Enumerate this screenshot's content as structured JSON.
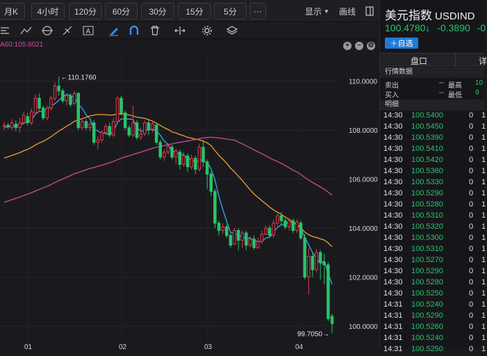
{
  "period_tabs": [
    "月K",
    "4小时",
    "120分",
    "60分",
    "30分",
    "15分",
    "5分",
    "···"
  ],
  "toolbar_right": {
    "display_label": "显示",
    "draw_label": "画线"
  },
  "ma_info": "A60:105.6021",
  "chart_data": {
    "type": "candlestick",
    "y_axis_labels": [
      "110.0000",
      "108.0000",
      "106.0000",
      "104.0000",
      "102.0000",
      "100.0000"
    ],
    "ylim": [
      99.4,
      110.9
    ],
    "annotations": {
      "high": "←110.1760",
      "low": "99.7050→"
    },
    "x_tick_labels": [
      "01",
      "02",
      "03",
      "04"
    ],
    "colors": {
      "up": "#e5384f",
      "down": "#29c46a",
      "ma_fast": "#3ba6f0",
      "ma_mid": "#f0a030",
      "ma_slow": "#d04a9a"
    },
    "candles": [
      {
        "o": 108.15,
        "c": 108.2,
        "h": 108.35,
        "l": 108.0
      },
      {
        "o": 108.2,
        "c": 108.15,
        "h": 108.3,
        "l": 108.05
      },
      {
        "o": 108.1,
        "c": 108.3,
        "h": 108.45,
        "l": 108.0
      },
      {
        "o": 108.25,
        "c": 108.1,
        "h": 108.4,
        "l": 107.95
      },
      {
        "o": 108.1,
        "c": 108.3,
        "h": 108.5,
        "l": 107.9
      },
      {
        "o": 108.3,
        "c": 108.6,
        "h": 108.75,
        "l": 108.2
      },
      {
        "o": 108.55,
        "c": 108.3,
        "h": 108.7,
        "l": 108.2
      },
      {
        "o": 108.3,
        "c": 108.75,
        "h": 108.9,
        "l": 108.2
      },
      {
        "o": 108.7,
        "c": 109.3,
        "h": 109.45,
        "l": 108.6
      },
      {
        "o": 109.3,
        "c": 108.9,
        "h": 109.5,
        "l": 108.8
      },
      {
        "o": 108.9,
        "c": 108.5,
        "h": 109.0,
        "l": 108.4
      },
      {
        "o": 108.5,
        "c": 108.9,
        "h": 109.0,
        "l": 108.4
      },
      {
        "o": 108.9,
        "c": 109.3,
        "h": 109.4,
        "l": 108.8
      },
      {
        "o": 109.3,
        "c": 109.8,
        "h": 109.95,
        "l": 109.2
      },
      {
        "o": 109.8,
        "c": 109.6,
        "h": 110.176,
        "l": 109.4
      },
      {
        "o": 109.6,
        "c": 109.2,
        "h": 109.7,
        "l": 109.1
      },
      {
        "o": 109.2,
        "c": 109.4,
        "h": 109.5,
        "l": 109.0
      },
      {
        "o": 109.4,
        "c": 109.05,
        "h": 109.5,
        "l": 108.95
      },
      {
        "o": 109.1,
        "c": 109.5,
        "h": 109.6,
        "l": 109.0
      },
      {
        "o": 109.5,
        "c": 108.1,
        "h": 109.55,
        "l": 108.0
      },
      {
        "o": 108.1,
        "c": 108.35,
        "h": 108.5,
        "l": 108.0
      },
      {
        "o": 108.35,
        "c": 108.1,
        "h": 108.45,
        "l": 108.0
      },
      {
        "o": 108.1,
        "c": 108.25,
        "h": 108.35,
        "l": 107.95
      },
      {
        "o": 108.3,
        "c": 107.5,
        "h": 108.4,
        "l": 107.4
      },
      {
        "o": 107.5,
        "c": 107.6,
        "h": 107.75,
        "l": 107.2
      },
      {
        "o": 107.6,
        "c": 107.9,
        "h": 108.0,
        "l": 107.5
      },
      {
        "o": 107.9,
        "c": 108.15,
        "h": 108.25,
        "l": 107.8
      },
      {
        "o": 108.15,
        "c": 107.8,
        "h": 108.3,
        "l": 107.7
      },
      {
        "o": 107.8,
        "c": 108.35,
        "h": 108.5,
        "l": 107.7
      },
      {
        "o": 108.35,
        "c": 109.3,
        "h": 109.4,
        "l": 108.25
      },
      {
        "o": 109.3,
        "c": 108.7,
        "h": 109.4,
        "l": 108.6
      },
      {
        "o": 108.7,
        "c": 108.1,
        "h": 108.8,
        "l": 108.0
      },
      {
        "o": 108.1,
        "c": 107.8,
        "h": 108.2,
        "l": 107.7
      },
      {
        "o": 107.8,
        "c": 108.3,
        "h": 109.0,
        "l": 107.7
      },
      {
        "o": 108.3,
        "c": 107.7,
        "h": 108.4,
        "l": 107.6
      },
      {
        "o": 107.7,
        "c": 107.85,
        "h": 108.1,
        "l": 107.6
      },
      {
        "o": 107.85,
        "c": 108.3,
        "h": 108.4,
        "l": 107.75
      },
      {
        "o": 108.3,
        "c": 108.0,
        "h": 108.45,
        "l": 107.8
      },
      {
        "o": 108.05,
        "c": 108.25,
        "h": 108.4,
        "l": 107.9
      },
      {
        "o": 108.2,
        "c": 107.5,
        "h": 108.3,
        "l": 107.4
      },
      {
        "o": 107.5,
        "c": 106.9,
        "h": 107.6,
        "l": 106.8
      },
      {
        "o": 106.9,
        "c": 107.1,
        "h": 107.2,
        "l": 106.75
      },
      {
        "o": 107.1,
        "c": 107.35,
        "h": 107.45,
        "l": 107.0
      },
      {
        "o": 107.3,
        "c": 106.9,
        "h": 107.4,
        "l": 106.8
      },
      {
        "o": 106.9,
        "c": 107.15,
        "h": 107.25,
        "l": 106.6
      },
      {
        "o": 107.1,
        "c": 106.6,
        "h": 107.2,
        "l": 106.4
      },
      {
        "o": 106.6,
        "c": 106.95,
        "h": 107.1,
        "l": 106.5
      },
      {
        "o": 106.95,
        "c": 106.5,
        "h": 107.05,
        "l": 106.3
      },
      {
        "o": 106.5,
        "c": 106.85,
        "h": 107.0,
        "l": 106.4
      },
      {
        "o": 106.85,
        "c": 106.4,
        "h": 106.95,
        "l": 106.2
      },
      {
        "o": 106.4,
        "c": 107.3,
        "h": 107.45,
        "l": 106.3
      },
      {
        "o": 107.3,
        "c": 106.7,
        "h": 107.6,
        "l": 106.5
      },
      {
        "o": 106.7,
        "c": 106.2,
        "h": 106.8,
        "l": 105.6
      },
      {
        "o": 106.2,
        "c": 105.5,
        "h": 106.3,
        "l": 105.3
      },
      {
        "o": 105.5,
        "c": 104.2,
        "h": 105.6,
        "l": 104.0
      },
      {
        "o": 104.2,
        "c": 103.9,
        "h": 104.3,
        "l": 103.7
      },
      {
        "o": 103.9,
        "c": 104.05,
        "h": 104.2,
        "l": 103.75
      },
      {
        "o": 104.05,
        "c": 103.7,
        "h": 104.15,
        "l": 103.6
      },
      {
        "o": 103.7,
        "c": 103.3,
        "h": 103.8,
        "l": 103.2
      },
      {
        "o": 103.35,
        "c": 103.9,
        "h": 104.0,
        "l": 103.3
      },
      {
        "o": 103.9,
        "c": 103.5,
        "h": 104.0,
        "l": 103.1
      },
      {
        "o": 103.5,
        "c": 103.8,
        "h": 103.9,
        "l": 103.2
      },
      {
        "o": 103.8,
        "c": 103.3,
        "h": 103.9,
        "l": 103.1
      },
      {
        "o": 103.3,
        "c": 103.55,
        "h": 103.65,
        "l": 103.2
      },
      {
        "o": 103.55,
        "c": 103.2,
        "h": 103.7,
        "l": 103.1
      },
      {
        "o": 103.2,
        "c": 103.45,
        "h": 103.6,
        "l": 103.15
      },
      {
        "o": 103.45,
        "c": 103.75,
        "h": 103.9,
        "l": 103.35
      },
      {
        "o": 103.75,
        "c": 104.0,
        "h": 104.1,
        "l": 103.7
      },
      {
        "o": 104.0,
        "c": 103.7,
        "h": 104.1,
        "l": 103.6
      },
      {
        "o": 103.7,
        "c": 104.2,
        "h": 104.35,
        "l": 103.6
      },
      {
        "o": 104.2,
        "c": 104.5,
        "h": 104.65,
        "l": 104.1
      },
      {
        "o": 104.5,
        "c": 104.3,
        "h": 104.65,
        "l": 104.1
      },
      {
        "o": 104.3,
        "c": 104.05,
        "h": 104.4,
        "l": 103.95
      },
      {
        "o": 104.05,
        "c": 104.3,
        "h": 104.4,
        "l": 103.9
      },
      {
        "o": 104.3,
        "c": 103.9,
        "h": 104.4,
        "l": 103.8
      },
      {
        "o": 103.9,
        "c": 104.25,
        "h": 104.35,
        "l": 103.8
      },
      {
        "o": 104.2,
        "c": 103.6,
        "h": 104.3,
        "l": 103.5
      },
      {
        "o": 103.6,
        "c": 102.0,
        "h": 103.75,
        "l": 101.9
      },
      {
        "o": 102.0,
        "c": 102.85,
        "h": 103.2,
        "l": 101.3
      },
      {
        "o": 102.85,
        "c": 102.3,
        "h": 103.0,
        "l": 102.0
      },
      {
        "o": 102.3,
        "c": 103.0,
        "h": 103.15,
        "l": 102.2
      },
      {
        "o": 103.0,
        "c": 102.6,
        "h": 103.1,
        "l": 101.9
      },
      {
        "o": 102.6,
        "c": 102.5,
        "h": 102.95,
        "l": 101.7
      },
      {
        "o": 102.5,
        "c": 100.3,
        "h": 102.6,
        "l": 100.2
      },
      {
        "o": 100.4,
        "c": 100.1,
        "h": 100.5,
        "l": 99.705
      }
    ]
  },
  "side_panel": {
    "title": "美元指数",
    "code": "USDIND",
    "price": "100.4780↓",
    "change": "-0.3890",
    "pct": "-0",
    "add_button": "＋自选",
    "tabs": [
      "盘口",
      "详"
    ],
    "market_data_title": "行情数据",
    "sell_label": "卖出",
    "sell_value": "--",
    "high_label": "最高",
    "high_value": "10",
    "buy_label": "买入",
    "buy_value": "--",
    "low_label": "最低",
    "low_value": "9",
    "detail_title": "明细",
    "ticks": [
      {
        "time": "14:30",
        "price": "100.5400",
        "vol": "0",
        "v2": "1"
      },
      {
        "time": "14:30",
        "price": "100.5450",
        "vol": "0",
        "v2": "1"
      },
      {
        "time": "14:30",
        "price": "100.5390",
        "vol": "0",
        "v2": "1"
      },
      {
        "time": "14:30",
        "price": "100.5410",
        "vol": "0",
        "v2": "1"
      },
      {
        "time": "14:30",
        "price": "100.5420",
        "vol": "0",
        "v2": "1"
      },
      {
        "time": "14:30",
        "price": "100.5360",
        "vol": "0",
        "v2": "1"
      },
      {
        "time": "14:30",
        "price": "100.5330",
        "vol": "0",
        "v2": "1"
      },
      {
        "time": "14:30",
        "price": "100.5290",
        "vol": "0",
        "v2": "1"
      },
      {
        "time": "14:30",
        "price": "100.5280",
        "vol": "0",
        "v2": "1"
      },
      {
        "time": "14:30",
        "price": "100.5310",
        "vol": "0",
        "v2": "1"
      },
      {
        "time": "14:30",
        "price": "100.5320",
        "vol": "0",
        "v2": "1"
      },
      {
        "time": "14:30",
        "price": "100.5300",
        "vol": "0",
        "v2": "1"
      },
      {
        "time": "14:30",
        "price": "100.5310",
        "vol": "0",
        "v2": "1"
      },
      {
        "time": "14:30",
        "price": "100.5270",
        "vol": "0",
        "v2": "1"
      },
      {
        "time": "14:30",
        "price": "100.5290",
        "vol": "0",
        "v2": "1"
      },
      {
        "time": "14:30",
        "price": "100.5280",
        "vol": "0",
        "v2": "1"
      },
      {
        "time": "14:30",
        "price": "100.5250",
        "vol": "0",
        "v2": "1"
      },
      {
        "time": "14:31",
        "price": "100.5240",
        "vol": "0",
        "v2": "1"
      },
      {
        "time": "14:31",
        "price": "100.5290",
        "vol": "0",
        "v2": "1"
      },
      {
        "time": "14:31",
        "price": "100.5260",
        "vol": "0",
        "v2": "1"
      },
      {
        "time": "14:31",
        "price": "100.5240",
        "vol": "0",
        "v2": "1"
      },
      {
        "time": "14:31",
        "price": "100.5250",
        "vol": "0",
        "v2": "1"
      }
    ]
  }
}
